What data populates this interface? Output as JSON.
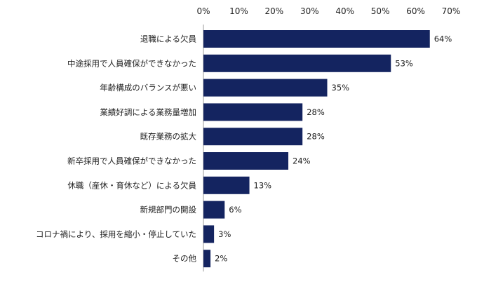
{
  "chart_data": {
    "type": "bar",
    "orientation": "horizontal",
    "categories": [
      "退職による欠員",
      "中途採用で人員確保ができなかった",
      "年齢構成のバランスが悪い",
      "業績好調による業務量増加",
      "既存業務の拡大",
      "新卒採用で人員確保ができなかった",
      "休職（産休・育休など）による欠員",
      "新規部門の開設",
      "コロナ禍により、採用を縮小・停止していた",
      "その他"
    ],
    "values": [
      64,
      53,
      35,
      28,
      28,
      24,
      13,
      6,
      3,
      2
    ],
    "value_labels": [
      "64%",
      "53%",
      "35%",
      "28%",
      "28%",
      "24%",
      "13%",
      "6%",
      "3%",
      "2%"
    ],
    "ticks": [
      0,
      10,
      20,
      30,
      40,
      50,
      60,
      70
    ],
    "tick_labels": [
      "0%",
      "10%",
      "20%",
      "30%",
      "40%",
      "50%",
      "60%",
      "70%"
    ],
    "xlim": [
      0,
      70
    ],
    "axis_position": "top",
    "grid": false,
    "bar_color": "#142460",
    "title": "",
    "xlabel": "",
    "ylabel": ""
  }
}
